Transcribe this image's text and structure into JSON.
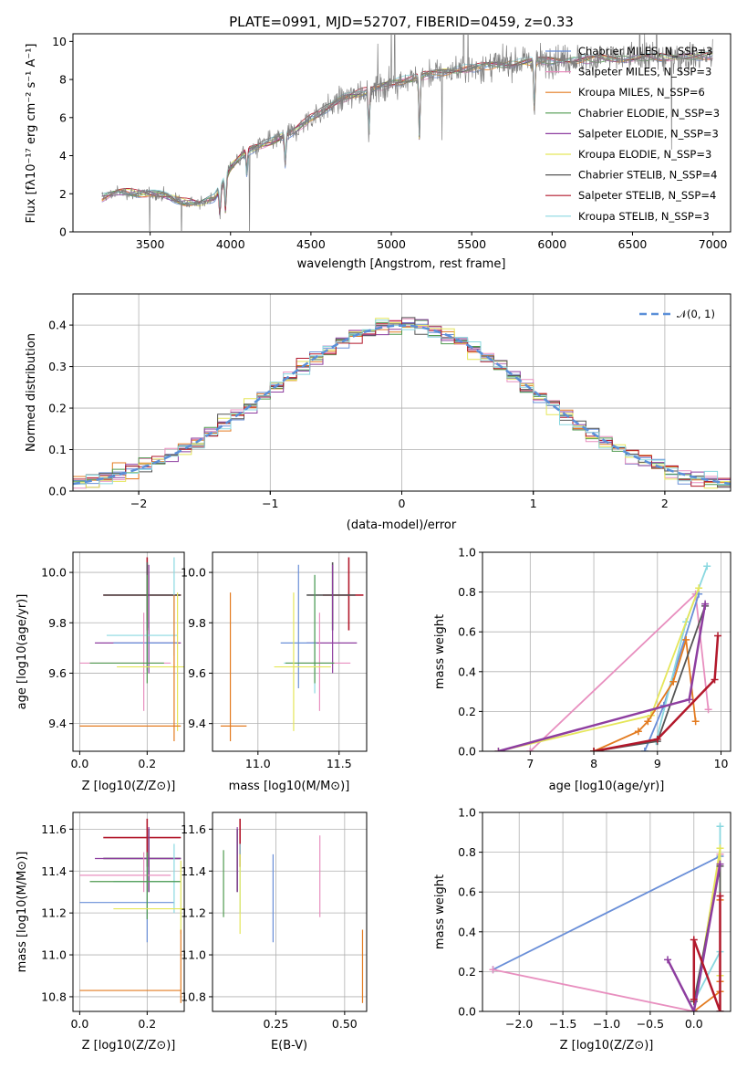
{
  "chart_data": [
    {
      "type": "line",
      "title": "PLATE=0991, MJD=52707, FIBERID=0459, z=0.33",
      "xlabel": "wavelength [Angstrom, rest frame]",
      "ylabel": "Flux [fλ10⁻¹⁷ erg cm⁻² s⁻¹ A⁻¹]",
      "xlim": [
        3020,
        7110
      ],
      "ylim": [
        0,
        10.4
      ],
      "xticks": [
        "3500",
        "4000",
        "4500",
        "5000",
        "5500",
        "6000",
        "6500",
        "7000"
      ],
      "yticks": [
        "0",
        "2",
        "4",
        "6",
        "8",
        "10"
      ],
      "legend_position": "top-right",
      "data_color": "#808080",
      "continuum_anchors": {
        "x": [
          3200,
          3300,
          3400,
          3500,
          3600,
          3700,
          3800,
          3900,
          3950,
          4000,
          4100,
          4200,
          4300,
          4400,
          4500,
          4600,
          4700,
          4800,
          4900,
          5000,
          5200,
          5400,
          5600,
          5800,
          6000,
          6200,
          6400,
          6600,
          6800,
          7000
        ],
        "y": [
          1.8,
          2.1,
          2.05,
          2.0,
          1.9,
          1.6,
          1.45,
          1.8,
          2.5,
          3.4,
          4.2,
          4.6,
          4.9,
          5.3,
          6.0,
          6.5,
          7.0,
          7.3,
          7.5,
          7.8,
          8.2,
          8.5,
          8.7,
          8.9,
          9.0,
          9.05,
          9.1,
          9.15,
          9.2,
          9.25
        ]
      },
      "series": [
        {
          "name": "Chabrier MILES, N_SSP=3",
          "color": "#6a8fd8"
        },
        {
          "name": "Salpeter MILES, N_SSP=3",
          "color": "#e88fbf"
        },
        {
          "name": "Kroupa MILES, N_SSP=6",
          "color": "#e37b20"
        },
        {
          "name": "Chabrier ELODIE, N_SSP=3",
          "color": "#4f9a4f"
        },
        {
          "name": "Salpeter ELODIE, N_SSP=3",
          "color": "#8e3ea0"
        },
        {
          "name": "Kroupa ELODIE, N_SSP=3",
          "color": "#e5e65a"
        },
        {
          "name": "Chabrier STELIB, N_SSP=4",
          "color": "#555555"
        },
        {
          "name": "Salpeter STELIB, N_SSP=4",
          "color": "#b2182b"
        },
        {
          "name": "Kroupa STELIB, N_SSP=3",
          "color": "#8ad8e0"
        }
      ]
    },
    {
      "type": "line",
      "xlabel": "(data-model)/error",
      "ylabel": "Normed distribution",
      "xlim": [
        -2.5,
        2.5
      ],
      "ylim": [
        0,
        0.475
      ],
      "xticks": [
        "−2",
        "−1",
        "0",
        "1",
        "2"
      ],
      "yticks": [
        "0.0",
        "0.1",
        "0.2",
        "0.3",
        "0.4"
      ],
      "grid": true,
      "legend_position": "top-right",
      "normal_curve": {
        "name": "𝒩(0, 1)",
        "mean": 0,
        "sigma": 1,
        "color": "#5b8fd8",
        "style": "dashed"
      },
      "histogram_bin_width": 0.1,
      "histogram_range": [
        -2.5,
        2.5
      ]
    },
    {
      "type": "scatter",
      "xlabel": "Z [log10(Z/Z⊙)]",
      "ylabel": "age  [log10(age/yr)]",
      "xlim": [
        -0.02,
        0.31
      ],
      "ylim": [
        9.29,
        10.08
      ],
      "xticks": [
        "0.0",
        "0.2"
      ],
      "yticks": [
        "9.4",
        "9.6",
        "9.8",
        "10.0"
      ],
      "points": [
        {
          "x": 0.2,
          "y": 9.91,
          "xlo": 0.07,
          "xhi": 0.3,
          "ylo": 9.77,
          "yhi": 10.06,
          "color": "#b2182b"
        },
        {
          "x": 0.2,
          "y": 9.91,
          "xlo": 0.07,
          "xhi": 0.3,
          "ylo": 9.78,
          "yhi": 10.04,
          "color": "#555555"
        },
        {
          "x": 0.205,
          "y": 9.72,
          "xlo": 0.045,
          "xhi": 0.3,
          "ylo": 9.6,
          "yhi": 10.03,
          "color": "#8e3ea0"
        },
        {
          "x": 0.2,
          "y": 9.72,
          "xlo": 0.1,
          "xhi": 0.29,
          "ylo": 9.61,
          "yhi": 9.81,
          "color": "#6a8fd8"
        },
        {
          "x": 0.28,
          "y": 9.75,
          "xlo": 0.08,
          "xhi": 0.29,
          "ylo": 9.67,
          "yhi": 10.06,
          "color": "#8ad8e0"
        },
        {
          "x": 0.19,
          "y": 9.64,
          "xlo": 0.0,
          "xhi": 0.27,
          "ylo": 9.45,
          "yhi": 9.84,
          "color": "#e88fbf"
        },
        {
          "x": 0.2,
          "y": 9.64,
          "xlo": 0.03,
          "xhi": 0.25,
          "ylo": 9.56,
          "yhi": 9.99,
          "color": "#4f9a4f"
        },
        {
          "x": 0.29,
          "y": 9.625,
          "xlo": 0.11,
          "xhi": 0.31,
          "ylo": 9.37,
          "yhi": 9.92,
          "color": "#e5e65a"
        },
        {
          "x": 0.28,
          "y": 9.39,
          "xlo": 0.0,
          "xhi": 0.3,
          "ylo": 9.33,
          "yhi": 9.91,
          "color": "#e37b20"
        }
      ]
    },
    {
      "type": "scatter",
      "xlabel": "mass [log10(M/M⊙)]",
      "ylabel": "",
      "xlim": [
        10.72,
        11.67
      ],
      "ylim": [
        9.29,
        10.08
      ],
      "xticks": [
        "11.0",
        "11.5"
      ],
      "yticks": [
        "9.4",
        "9.6",
        "9.8",
        "10.0"
      ],
      "points": [
        {
          "x": 11.56,
          "y": 9.91,
          "xlo": 11.4,
          "xhi": 11.65,
          "ylo": 9.77,
          "yhi": 10.06,
          "color": "#b2182b"
        },
        {
          "x": 11.46,
          "y": 9.91,
          "xlo": 11.3,
          "xhi": 11.6,
          "ylo": 9.77,
          "yhi": 10.04,
          "color": "#555555"
        },
        {
          "x": 11.46,
          "y": 9.72,
          "xlo": 11.3,
          "xhi": 11.61,
          "ylo": 9.6,
          "yhi": 10.03,
          "color": "#8e3ea0"
        },
        {
          "x": 11.25,
          "y": 9.72,
          "xlo": 11.14,
          "xhi": 11.36,
          "ylo": 9.54,
          "yhi": 10.03,
          "color": "#6a8fd8"
        },
        {
          "x": 11.35,
          "y": 9.64,
          "xlo": 11.16,
          "xhi": 11.47,
          "ylo": 9.52,
          "yhi": 9.99,
          "color": "#8ad8e0"
        },
        {
          "x": 11.38,
          "y": 9.64,
          "xlo": 11.25,
          "xhi": 11.57,
          "ylo": 9.45,
          "yhi": 9.84,
          "color": "#e88fbf"
        },
        {
          "x": 11.35,
          "y": 9.64,
          "xlo": 11.17,
          "xhi": 11.47,
          "ylo": 9.56,
          "yhi": 9.99,
          "color": "#4f9a4f"
        },
        {
          "x": 11.22,
          "y": 9.625,
          "xlo": 11.1,
          "xhi": 11.45,
          "ylo": 9.37,
          "yhi": 9.92,
          "color": "#e5e65a"
        },
        {
          "x": 10.83,
          "y": 9.39,
          "xlo": 10.77,
          "xhi": 10.93,
          "ylo": 9.33,
          "yhi": 9.92,
          "color": "#e37b20"
        }
      ]
    },
    {
      "type": "line",
      "xlabel": "age  [log10(age/yr)]",
      "ylabel": "mass weight",
      "xlim": [
        6.25,
        10.15
      ],
      "ylim": [
        0,
        1.0
      ],
      "xticks": [
        "7",
        "8",
        "9",
        "10"
      ],
      "yticks": [
        "0.0",
        "0.2",
        "0.4",
        "0.6",
        "0.8",
        "1.0"
      ],
      "grid": true,
      "series": [
        {
          "color": "#e88fbf",
          "x": [
            7.0,
            9.6,
            9.8
          ],
          "y": [
            0.0,
            0.79,
            0.21
          ]
        },
        {
          "color": "#6a8fd8",
          "x": [
            8.8,
            9.1,
            9.65
          ],
          "y": [
            0.0,
            0.23,
            0.79
          ]
        },
        {
          "color": "#8ad8e0",
          "x": [
            8.98,
            9.45,
            9.78
          ],
          "y": [
            0.05,
            0.65,
            0.93
          ]
        },
        {
          "color": "#e5e65a",
          "x": [
            6.5,
            8.9,
            9.65
          ],
          "y": [
            0.0,
            0.18,
            0.82
          ]
        },
        {
          "color": "#e37b20",
          "x": [
            8.0,
            8.7,
            8.85,
            9.25,
            9.45,
            9.6
          ],
          "y": [
            0.0,
            0.1,
            0.15,
            0.35,
            0.56,
            0.15
          ]
        },
        {
          "color": "#555555",
          "x": [
            8.0,
            9.0,
            9.75
          ],
          "y": [
            0.0,
            0.05,
            0.73
          ]
        },
        {
          "color": "#8e3ea0",
          "x": [
            6.5,
            9.5,
            9.75
          ],
          "y": [
            0.0,
            0.26,
            0.74
          ]
        },
        {
          "color": "#b2182b",
          "x": [
            8.0,
            9.0,
            9.9,
            9.95
          ],
          "y": [
            0.0,
            0.06,
            0.36,
            0.58
          ]
        }
      ]
    },
    {
      "type": "scatter",
      "xlabel": "Z [log10(Z/Z⊙)]",
      "ylabel": "mass [log10(M/M⊙)]",
      "xlim": [
        -0.02,
        0.31
      ],
      "ylim": [
        10.73,
        11.68
      ],
      "xticks": [
        "0.0",
        "0.2"
      ],
      "yticks": [
        "10.8",
        "11.0",
        "11.2",
        "11.4",
        "11.6"
      ],
      "points": [
        {
          "x": 0.2,
          "y": 11.56,
          "xlo": 0.07,
          "xhi": 0.3,
          "ylo": 11.42,
          "yhi": 11.65,
          "color": "#b2182b"
        },
        {
          "x": 0.205,
          "y": 11.46,
          "xlo": 0.07,
          "xhi": 0.3,
          "ylo": 11.3,
          "yhi": 11.6,
          "color": "#555555"
        },
        {
          "x": 0.205,
          "y": 11.46,
          "xlo": 0.045,
          "xhi": 0.3,
          "ylo": 11.3,
          "yhi": 11.61,
          "color": "#8e3ea0"
        },
        {
          "x": 0.2,
          "y": 11.25,
          "xlo": 0.0,
          "xhi": 0.28,
          "ylo": 11.06,
          "yhi": 11.47,
          "color": "#6a8fd8"
        },
        {
          "x": 0.28,
          "y": 11.35,
          "xlo": 0.1,
          "xhi": 0.3,
          "ylo": 11.2,
          "yhi": 11.53,
          "color": "#8ad8e0"
        },
        {
          "x": 0.19,
          "y": 11.38,
          "xlo": 0.0,
          "xhi": 0.27,
          "ylo": 11.3,
          "yhi": 11.49,
          "color": "#e88fbf"
        },
        {
          "x": 0.2,
          "y": 11.35,
          "xlo": 0.03,
          "xhi": 0.3,
          "ylo": 11.17,
          "yhi": 11.49,
          "color": "#4f9a4f"
        },
        {
          "x": 0.3,
          "y": 11.22,
          "xlo": 0.1,
          "xhi": 0.31,
          "ylo": 11.1,
          "yhi": 11.45,
          "color": "#e5e65a"
        },
        {
          "x": 0.3,
          "y": 10.83,
          "xlo": 0.0,
          "xhi": 0.3,
          "ylo": 10.77,
          "yhi": 11.12,
          "color": "#e37b20"
        }
      ]
    },
    {
      "type": "scatter",
      "xlabel": "E(B-V)",
      "ylabel": "",
      "xlim": [
        0.02,
        0.58
      ],
      "ylim": [
        10.73,
        11.68
      ],
      "xticks": [
        "0.25",
        "0.50"
      ],
      "yticks": [
        "10.8",
        "11.0",
        "11.2",
        "11.4",
        "11.6"
      ],
      "points": [
        {
          "x": 0.12,
          "y": 11.56,
          "ylo": 11.42,
          "yhi": 11.65,
          "color": "#b2182b"
        },
        {
          "x": 0.11,
          "y": 11.46,
          "ylo": 11.3,
          "yhi": 11.6,
          "color": "#555555"
        },
        {
          "x": 0.11,
          "y": 11.46,
          "ylo": 11.3,
          "yhi": 11.61,
          "color": "#8e3ea0"
        },
        {
          "x": 0.24,
          "y": 11.25,
          "ylo": 11.06,
          "yhi": 11.48,
          "color": "#6a8fd8"
        },
        {
          "x": 0.12,
          "y": 11.35,
          "ylo": 11.2,
          "yhi": 11.53,
          "color": "#8ad8e0"
        },
        {
          "x": 0.41,
          "y": 11.38,
          "ylo": 11.18,
          "yhi": 11.57,
          "color": "#e88fbf"
        },
        {
          "x": 0.06,
          "y": 11.35,
          "ylo": 11.18,
          "yhi": 11.5,
          "color": "#4f9a4f"
        },
        {
          "x": 0.12,
          "y": 11.22,
          "ylo": 11.1,
          "yhi": 11.48,
          "color": "#e5e65a"
        },
        {
          "x": 0.565,
          "y": 10.83,
          "ylo": 10.77,
          "yhi": 11.12,
          "color": "#e37b20"
        }
      ]
    },
    {
      "type": "line",
      "xlabel": "Z [log10(Z/Z⊙)]",
      "ylabel": "mass weight",
      "xlim": [
        -2.42,
        0.42
      ],
      "ylim": [
        0,
        1.0
      ],
      "xticks": [
        "−2.0",
        "−1.5",
        "−1.0",
        "−0.5",
        "0.0"
      ],
      "yticks": [
        "0.0",
        "0.2",
        "0.4",
        "0.6",
        "0.8",
        "1.0"
      ],
      "grid": true,
      "series": [
        {
          "color": "#6a8fd8",
          "x": [
            -2.3,
            0.3,
            0.3
          ],
          "y": [
            0.21,
            0.78,
            0.0
          ]
        },
        {
          "color": "#e88fbf",
          "x": [
            -2.3,
            0.0,
            0.3
          ],
          "y": [
            0.21,
            0.0,
            0.79
          ]
        },
        {
          "color": "#8ad8e0",
          "x": [
            0.0,
            0.3,
            0.3
          ],
          "y": [
            0.05,
            0.3,
            0.93
          ]
        },
        {
          "color": "#e5e65a",
          "x": [
            0.0,
            0.3,
            0.3
          ],
          "y": [
            0.0,
            0.82,
            0.18
          ]
        },
        {
          "color": "#e37b20",
          "x": [
            0.0,
            0.3,
            0.3,
            0.3
          ],
          "y": [
            0.0,
            0.1,
            0.15,
            0.56
          ]
        },
        {
          "color": "#555555",
          "x": [
            0.0,
            0.3,
            0.3
          ],
          "y": [
            0.05,
            0.73,
            0.0
          ]
        },
        {
          "color": "#8e3ea0",
          "x": [
            -0.3,
            0.0,
            0.3
          ],
          "y": [
            0.26,
            0.0,
            0.74
          ]
        },
        {
          "color": "#b2182b",
          "x": [
            0.0,
            0.0,
            0.3,
            0.3
          ],
          "y": [
            0.06,
            0.36,
            0.0,
            0.58
          ]
        }
      ]
    }
  ]
}
